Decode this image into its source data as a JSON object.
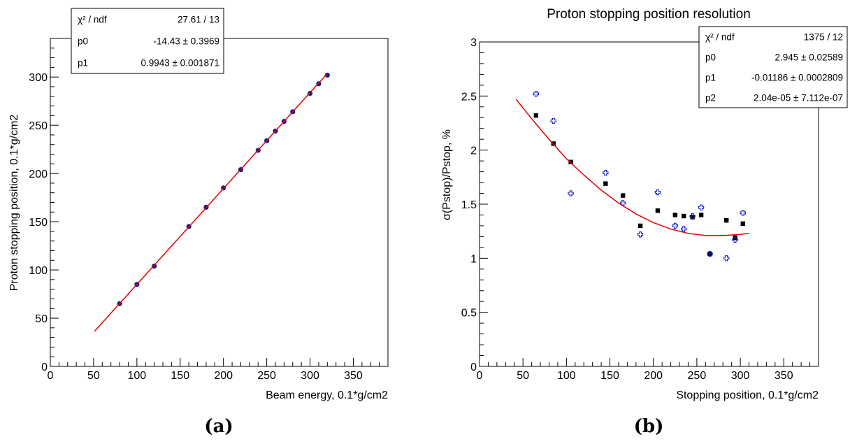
{
  "chart_data": [
    {
      "type": "scatter",
      "title": "",
      "panel_label": "(a)",
      "xlabel": "Beam energy, 0.1*g/cm2",
      "ylabel": "Proton stopping position, 0.1*g/cm2",
      "xlim": [
        0,
        390
      ],
      "ylim": [
        0,
        340
      ],
      "x_ticks": [
        "0",
        "50",
        "100",
        "150",
        "200",
        "250",
        "300",
        "350"
      ],
      "y_ticks": [
        "0",
        "50",
        "100",
        "150",
        "200",
        "250",
        "300"
      ],
      "grid": false,
      "series": [
        {
          "marker": "filled-circle",
          "color": "#1a1a8c",
          "x": [
            80,
            100,
            120,
            160,
            180,
            200,
            220,
            240,
            250,
            260,
            270,
            280,
            300,
            310,
            320
          ],
          "y": [
            65,
            85,
            104,
            145,
            165,
            185,
            204,
            224,
            234,
            244,
            254,
            264,
            283,
            293,
            302
          ]
        },
        {
          "marker": "fit-line",
          "color": "#e00000",
          "x": [
            51,
            320
          ],
          "y": [
            36.3,
            303.7
          ]
        }
      ],
      "stats_box": {
        "rows": [
          {
            "label": "χ² / ndf",
            "value": "27.61 / 13"
          },
          {
            "label": "p0",
            "value": "-14.43 ± 0.3969"
          },
          {
            "label": "p1",
            "value": "0.9943 ± 0.001871"
          }
        ]
      }
    },
    {
      "type": "scatter",
      "title": "Proton stopping position resolution",
      "panel_label": "(b)",
      "xlabel": "Stopping position, 0.1*g/cm2",
      "ylabel": "σ(Pstop)/Pstop, %",
      "xlim": [
        0,
        390
      ],
      "ylim": [
        0,
        3
      ],
      "x_ticks": [
        "0",
        "50",
        "100",
        "150",
        "200",
        "250",
        "300",
        "350"
      ],
      "y_ticks": [
        "0",
        "0.5",
        "1",
        "1.5",
        "2",
        "2.5",
        "3"
      ],
      "grid": false,
      "series": [
        {
          "marker": "filled-square",
          "color": "#000000",
          "x": [
            65,
            85,
            105,
            145,
            165,
            185,
            205,
            225,
            235,
            245,
            255,
            265,
            284,
            294,
            303
          ],
          "y": [
            2.32,
            2.06,
            1.89,
            1.69,
            1.58,
            1.3,
            1.44,
            1.4,
            1.39,
            1.38,
            1.4,
            1.04,
            1.35,
            1.19,
            1.32
          ]
        },
        {
          "marker": "open-cross",
          "color": "#1a1ad0",
          "x": [
            65,
            85,
            105,
            145,
            165,
            185,
            205,
            225,
            235,
            245,
            255,
            265,
            284,
            294,
            303
          ],
          "y": [
            2.52,
            2.27,
            1.6,
            1.79,
            1.51,
            1.22,
            1.61,
            1.3,
            1.27,
            1.39,
            1.47,
            1.04,
            1.0,
            1.17,
            1.42
          ]
        },
        {
          "marker": "fit-line",
          "color": "#e00000",
          "x": [
            42,
            60,
            80,
            100,
            120,
            140,
            160,
            180,
            200,
            220,
            240,
            260,
            280,
            300,
            310
          ],
          "y": [
            2.47,
            2.29,
            2.1,
            1.92,
            1.77,
            1.63,
            1.51,
            1.41,
            1.33,
            1.27,
            1.23,
            1.21,
            1.21,
            1.22,
            1.23
          ]
        }
      ],
      "stats_box": {
        "rows": [
          {
            "label": "χ² / ndf",
            "value": "1375 / 12"
          },
          {
            "label": "p0",
            "value": "2.945 ± 0.02589"
          },
          {
            "label": "p1",
            "value": "-0.01186 ± 0.0002809"
          },
          {
            "label": "p2",
            "value": "2.04e-05 ± 7.112e-07"
          }
        ]
      }
    }
  ]
}
